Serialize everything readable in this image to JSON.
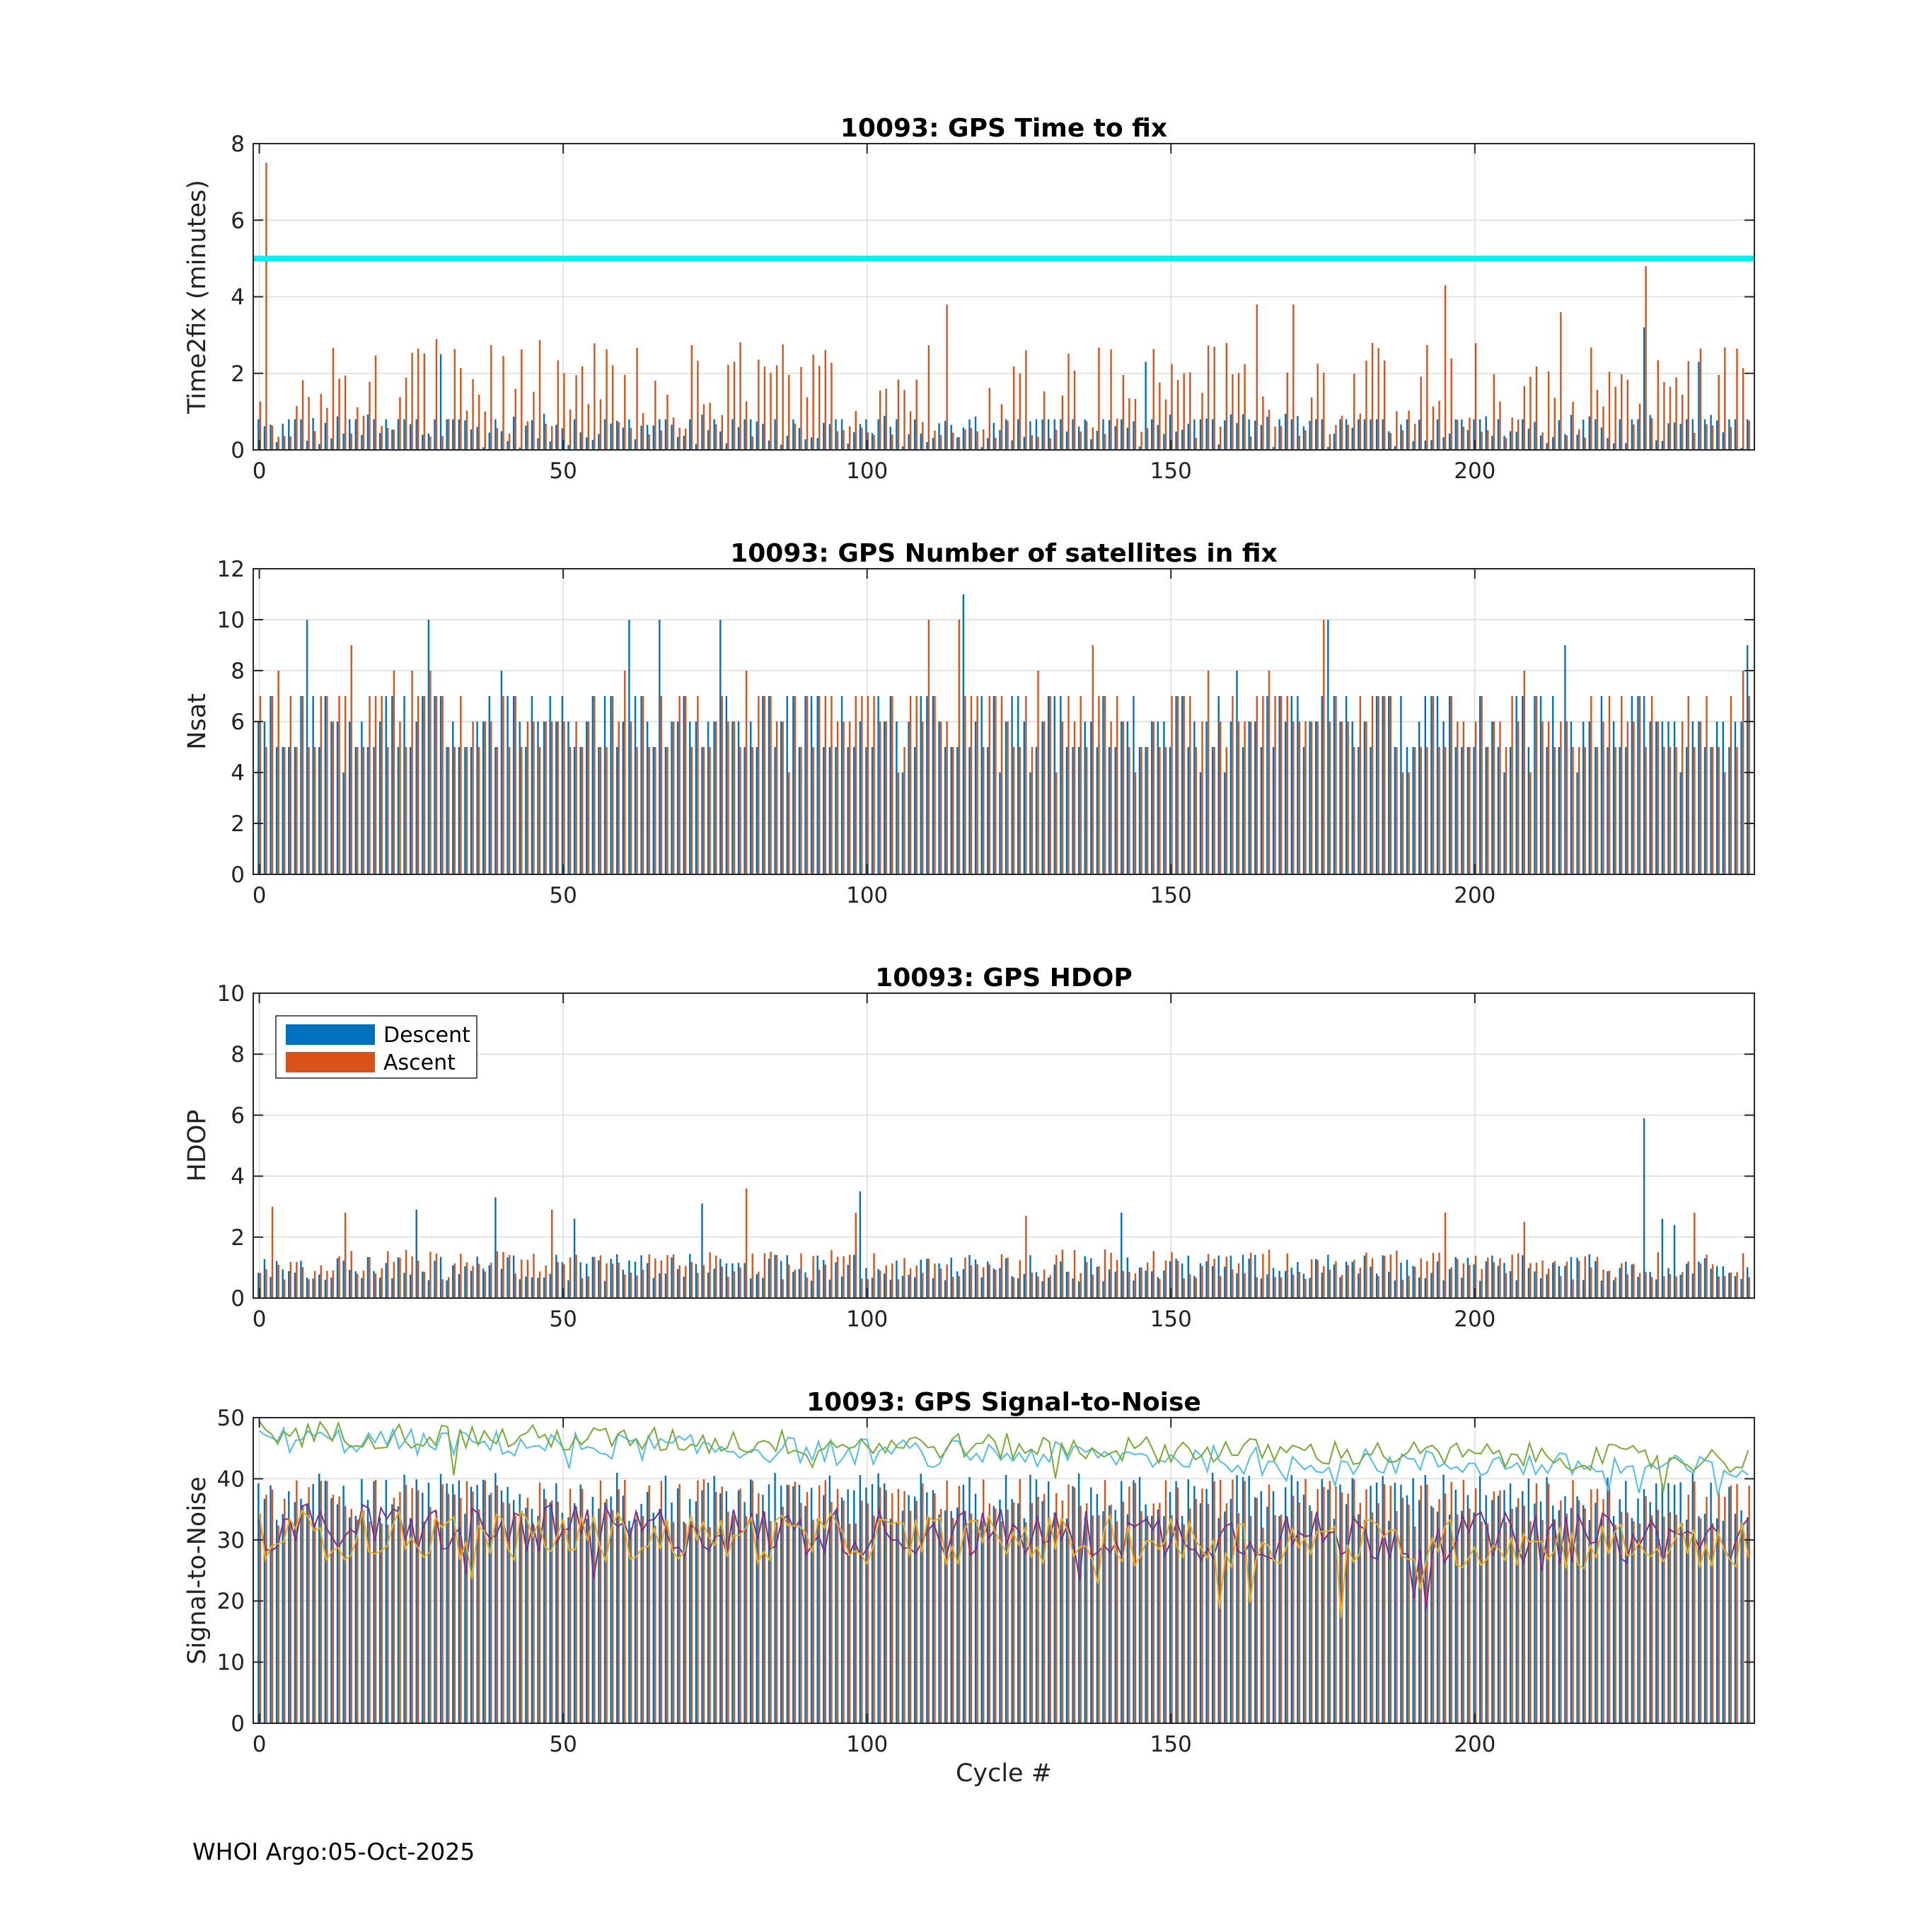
{
  "footer": "WHOI Argo:05-Oct-2025",
  "chart_data": [
    {
      "id": "ttf",
      "type": "bar",
      "title": "10093: GPS Time to fix",
      "ylabel": "Time2fix (minutes)",
      "xlabel": "",
      "xlim": [
        -1,
        246
      ],
      "ylim": [
        0,
        8
      ],
      "xticks": [
        0,
        50,
        100,
        150,
        200
      ],
      "yticks": [
        0,
        2,
        4,
        6,
        8
      ],
      "grid": true,
      "threshold": 5,
      "threshold_color": "#00f0f0",
      "series": [
        {
          "name": "Descent",
          "color": "#0072bd",
          "base": 0.5,
          "spread": 0.45,
          "spikes": {
            "30": 2.5,
            "146": 2.3,
            "228": 3.2,
            "237": 2.3
          }
        },
        {
          "name": "Ascent",
          "color": "#d95319",
          "base": 1.6,
          "spread": 1.3,
          "spikes": {
            "1": 7.5,
            "195": 4.3,
            "228": 4.8,
            "113": 3.8,
            "164": 3.8,
            "170": 3.8,
            "214": 3.6
          }
        }
      ]
    },
    {
      "id": "nsat",
      "type": "bar",
      "title": "10093: GPS Number of satellites in fix",
      "ylabel": "Nsat",
      "xlabel": "",
      "xlim": [
        -1,
        246
      ],
      "ylim": [
        0,
        12
      ],
      "xticks": [
        0,
        50,
        100,
        150,
        200
      ],
      "yticks": [
        0,
        2,
        4,
        6,
        8,
        10,
        12
      ],
      "grid": true,
      "series": [
        {
          "name": "Descent",
          "color": "#0072bd",
          "base": 6,
          "spread": 1.6,
          "integer": true,
          "spikes": {
            "8": 10,
            "28": 10,
            "61": 10,
            "66": 10,
            "76": 10,
            "116": 11,
            "176": 10,
            "215": 9,
            "245": 9
          }
        },
        {
          "name": "Ascent",
          "color": "#d95319",
          "base": 6,
          "spread": 1.6,
          "integer": true,
          "spikes": {
            "15": 9,
            "110": 10,
            "115": 10,
            "175": 10,
            "137": 9
          }
        }
      ]
    },
    {
      "id": "hdop",
      "type": "bar",
      "title": "10093: GPS HDOP",
      "ylabel": "HDOP",
      "xlabel": "",
      "xlim": [
        -1,
        246
      ],
      "ylim": [
        0,
        10
      ],
      "xticks": [
        0,
        50,
        100,
        150,
        200
      ],
      "yticks": [
        0,
        2,
        4,
        6,
        8,
        10
      ],
      "grid": true,
      "legend": {
        "position": "top-left",
        "entries": [
          "Descent",
          "Ascent"
        ]
      },
      "series": [
        {
          "name": "Descent",
          "color": "#0072bd",
          "base": 1.0,
          "spread": 0.45,
          "spikes": {
            "39": 3.3,
            "26": 2.9,
            "52": 2.6,
            "73": 3.1,
            "99": 3.5,
            "142": 2.8,
            "228": 5.9,
            "231": 2.6,
            "233": 2.4
          }
        },
        {
          "name": "Ascent",
          "color": "#d95319",
          "base": 1.1,
          "spread": 0.5,
          "spikes": {
            "2": 3.0,
            "14": 2.8,
            "48": 2.9,
            "80": 3.6,
            "98": 2.8,
            "126": 2.7,
            "195": 2.8,
            "208": 2.5,
            "236": 2.8
          }
        }
      ]
    },
    {
      "id": "snr",
      "type": "bar",
      "title": "10093: GPS Signal-to-Noise",
      "ylabel": "Signal-to-Noise",
      "xlabel": "Cycle #",
      "xlim": [
        -1,
        246
      ],
      "ylim": [
        0,
        50
      ],
      "xticks": [
        0,
        50,
        100,
        150,
        200
      ],
      "yticks": [
        0,
        10,
        20,
        30,
        40,
        50
      ],
      "grid": true,
      "series": [
        {
          "name": "Descent",
          "color": "#0072bd",
          "base": 37,
          "spread": 4
        },
        {
          "name": "Ascent",
          "color": "#d95319",
          "base": 36,
          "spread": 4
        }
      ],
      "lines": [
        {
          "color": "#4dbeee",
          "start": 46.5,
          "end": 41.5,
          "spread": 2.2
        },
        {
          "color": "#77ac30",
          "start": 47.5,
          "end": 43,
          "spread": 2.2
        },
        {
          "color": "#7e2f8e",
          "start": 32,
          "end": 30,
          "spread": 4.2
        },
        {
          "color": "#edb120",
          "start": 31,
          "end": 29,
          "spread": 4.2
        }
      ]
    }
  ]
}
